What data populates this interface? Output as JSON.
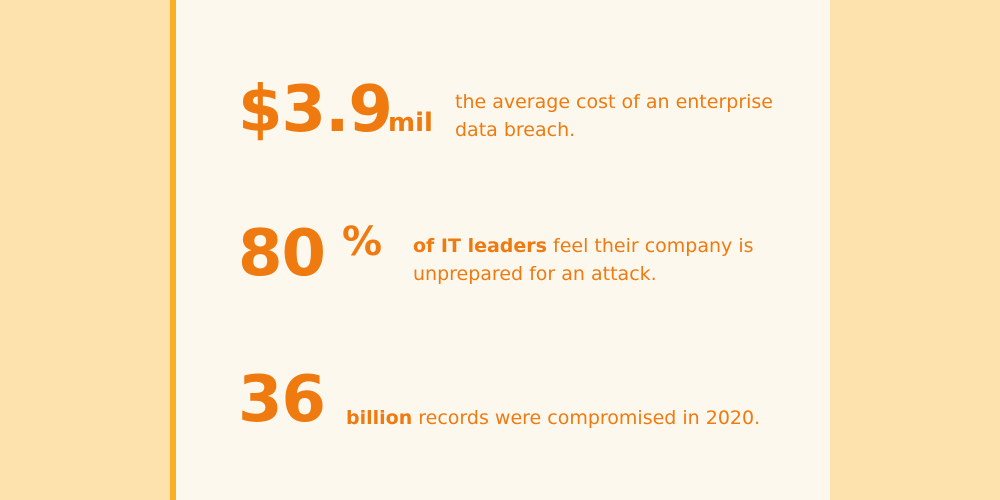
{
  "stats": [
    {
      "number": "$3.9",
      "unit": "mil",
      "line1": "the average cost of an enterprise",
      "line2": "data breach."
    },
    {
      "number": "80",
      "unit": "%",
      "line1_bold": "of IT leaders",
      "line1_rest": " feel their company is",
      "line2": "unprepared for an attack."
    },
    {
      "number": "36",
      "line1_bold": "billion",
      "line1_rest": " records were compromised in 2020."
    }
  ],
  "colors": {
    "background": "#fde2ad",
    "panel": "#fdf8ee",
    "accent_bar": "#fbb021",
    "text": "#ee7a10"
  }
}
